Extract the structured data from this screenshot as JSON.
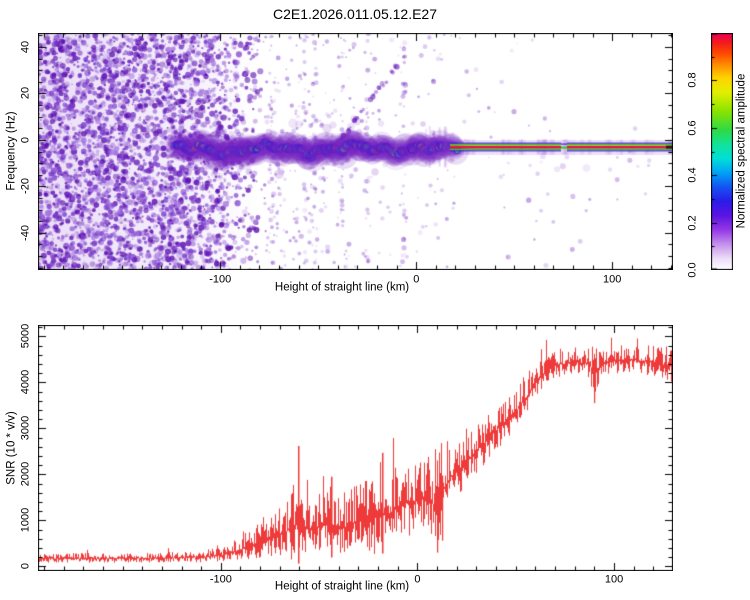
{
  "title": "C2E1.2026.011.05.12.E27",
  "colors": {
    "background": "#ffffff",
    "axis": "#000000",
    "curve_red": "#ee3a3a",
    "noise_purple": "#7a2cc4",
    "band_blue": "#2d17d8",
    "carrier_core_red": "#ea1245",
    "carrier_green": "#2ccd35",
    "carrier_violet": "#4416e0"
  },
  "chart_data": [
    {
      "id": "spectrogram",
      "type": "heatmap",
      "title": "C2E1.2026.011.05.12.E27",
      "xlabel": "Height of straight line (km)",
      "ylabel": "Frequency (Hz)",
      "xlim": [
        -193,
        131
      ],
      "ylim": [
        -56,
        46
      ],
      "grid": false,
      "x_major_ticks": [
        -100,
        0,
        100
      ],
      "x_tick_labels": [
        "-100",
        "0",
        "100"
      ],
      "x_minor_step": 10,
      "y_major_ticks": [
        40,
        20,
        0,
        -20,
        -40
      ],
      "y_tick_labels": [
        "40",
        "20",
        "0",
        "-20",
        "-40"
      ],
      "y_minor_step": 5,
      "colorbar": {
        "label": "Normalized spectral amplitude",
        "ticks": [
          0.0,
          0.2,
          0.4,
          0.6,
          0.8
        ],
        "tick_labels": [
          "0.0",
          "0.2",
          "0.4",
          "0.6",
          "0.8"
        ],
        "range": [
          0,
          1
        ],
        "colormap_stops": [
          [
            0.0,
            "#ffffff"
          ],
          [
            0.05,
            "#ecdcf8"
          ],
          [
            0.11,
            "#c38fec"
          ],
          [
            0.17,
            "#9438e6"
          ],
          [
            0.23,
            "#5b14e2"
          ],
          [
            0.29,
            "#2b1ce8"
          ],
          [
            0.35,
            "#1553f2"
          ],
          [
            0.41,
            "#00a2f5"
          ],
          [
            0.47,
            "#00dfd8"
          ],
          [
            0.53,
            "#12e39a"
          ],
          [
            0.59,
            "#2eda45"
          ],
          [
            0.67,
            "#8ae400"
          ],
          [
            0.75,
            "#e3ef00"
          ],
          [
            0.81,
            "#ffd400"
          ],
          [
            0.86,
            "#ff9400"
          ],
          [
            0.91,
            "#ff4d00"
          ],
          [
            0.96,
            "#f31b1b"
          ],
          [
            1.0,
            "#e8005c"
          ]
        ]
      },
      "features": {
        "noise_field_km": [
          -193,
          -95
        ],
        "signal_band": {
          "start_km": -124,
          "end_km": 21,
          "center_freq_hz": -3,
          "description": "meandering blue band with cyan/green/yellow/red cores near 0 Hz"
        },
        "carrier_line": {
          "start_km": 21,
          "end_km": 131,
          "center_freq_hz": -3,
          "layers": [
            "violet",
            "green",
            "crimson",
            "green",
            "violet"
          ]
        },
        "diagonal_streak": {
          "from_km_hz": [
            -40,
            -1
          ],
          "to_km_hz": [
            -7,
            35
          ]
        }
      }
    },
    {
      "id": "snr",
      "type": "line",
      "xlabel": "Height of straight line (km)",
      "ylabel": "SNR (10 * v/v)",
      "xlim": [
        -193,
        130
      ],
      "ylim": [
        -100,
        5250
      ],
      "grid": false,
      "x_major_ticks": [
        -100,
        0,
        100
      ],
      "x_tick_labels": [
        "-100",
        "0",
        "100"
      ],
      "x_minor_step": 10,
      "y_major_ticks": [
        0,
        1000,
        2000,
        3000,
        4000,
        5000
      ],
      "y_tick_labels": [
        "0",
        "1000",
        "2000",
        "3000",
        "4000",
        "5000"
      ],
      "y_minor_step": 200,
      "line_color": "#ee3a3a",
      "envelope_points": [
        [
          -193,
          170,
          95
        ],
        [
          -160,
          170,
          95
        ],
        [
          -130,
          180,
          100
        ],
        [
          -110,
          200,
          120
        ],
        [
          -100,
          240,
          150
        ],
        [
          -93,
          320,
          210
        ],
        [
          -86,
          430,
          290
        ],
        [
          -79,
          560,
          380
        ],
        [
          -73,
          640,
          430
        ],
        [
          -67,
          750,
          520
        ],
        [
          -61,
          950,
          1000
        ],
        [
          -58,
          800,
          560
        ],
        [
          -52,
          820,
          570
        ],
        [
          -46,
          950,
          800
        ],
        [
          -42,
          880,
          640
        ],
        [
          -36,
          860,
          620
        ],
        [
          -30,
          1030,
          780
        ],
        [
          -25,
          980,
          730
        ],
        [
          -20,
          1200,
          1000
        ],
        [
          -15,
          1120,
          720
        ],
        [
          -11,
          1280,
          800
        ],
        [
          -7,
          1420,
          760
        ],
        [
          -3,
          1350,
          800
        ],
        [
          1,
          1480,
          720
        ],
        [
          5,
          1450,
          850
        ],
        [
          9,
          1320,
          1050
        ],
        [
          13,
          1680,
          820
        ],
        [
          17,
          1950,
          700
        ],
        [
          21,
          2120,
          640
        ],
        [
          26,
          2330,
          560
        ],
        [
          31,
          2560,
          500
        ],
        [
          36,
          2780,
          480
        ],
        [
          41,
          3010,
          460
        ],
        [
          46,
          3220,
          430
        ],
        [
          51,
          3430,
          430
        ],
        [
          56,
          3720,
          430
        ],
        [
          61,
          4060,
          390
        ],
        [
          66,
          4300,
          340
        ],
        [
          71,
          4390,
          310
        ],
        [
          76,
          4410,
          290
        ],
        [
          81,
          4430,
          290
        ],
        [
          86,
          4430,
          290
        ],
        [
          90,
          4250,
          600
        ],
        [
          94,
          4400,
          290
        ],
        [
          100,
          4460,
          290
        ],
        [
          106,
          4510,
          290
        ],
        [
          112,
          4480,
          300
        ],
        [
          118,
          4440,
          310
        ],
        [
          124,
          4400,
          330
        ],
        [
          130,
          4330,
          350
        ]
      ],
      "notable_spikes": [
        [
          -60.5,
          2620
        ],
        [
          -44,
          1950
        ],
        [
          -18,
          2470
        ]
      ],
      "notable_dips": [
        [
          10,
          300
        ],
        [
          12.5,
          560
        ],
        [
          90,
          3550
        ]
      ]
    }
  ]
}
